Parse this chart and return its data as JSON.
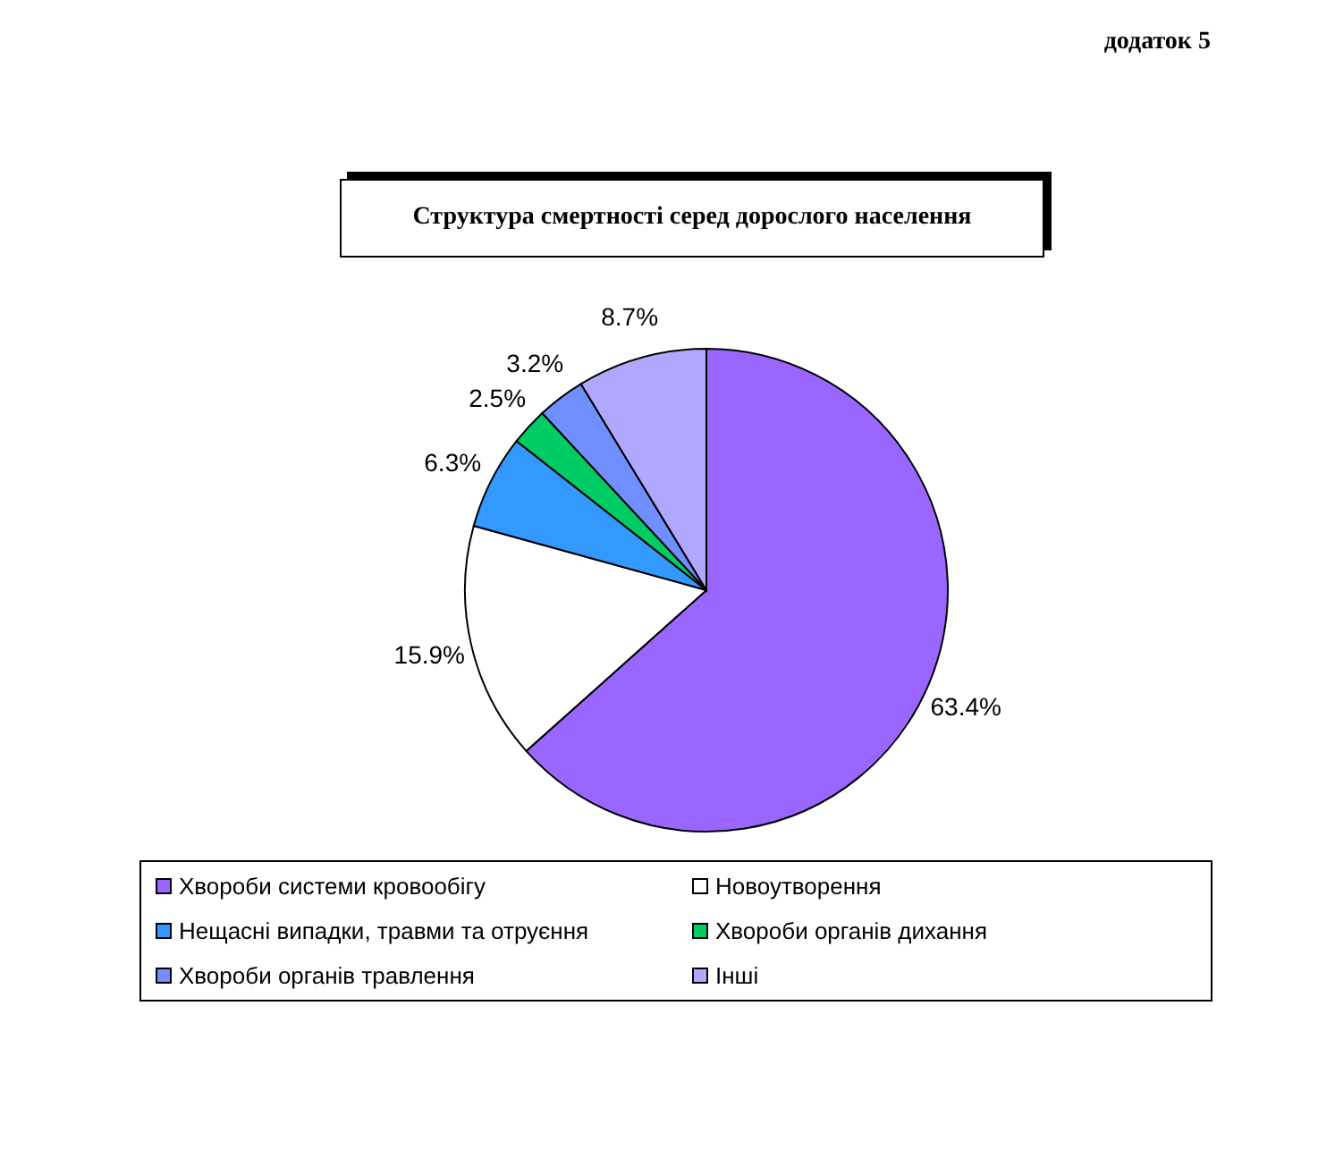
{
  "chart_data": {
    "type": "pie",
    "title": "Структура смертності серед дорослого населення",
    "annotations": [
      "додаток 5"
    ],
    "categories": [
      "Хвороби системи кровообігу",
      "Новоутворення",
      "Нещасні випадки, травми та отруєння",
      "Хвороби органів дихання",
      "Хвороби органів травлення",
      "Інші"
    ],
    "values": [
      63.4,
      15.9,
      6.3,
      2.5,
      3.2,
      8.7
    ],
    "value_labels": [
      "63.4%",
      "15.9%",
      "6.3%",
      "2.5%",
      "3.2%",
      "8.7%"
    ],
    "colors": [
      "#9966ff",
      "#ffffff",
      "#3399ff",
      "#00cc66",
      "#6f8fff",
      "#b0a8ff"
    ],
    "legend": "bottom"
  }
}
